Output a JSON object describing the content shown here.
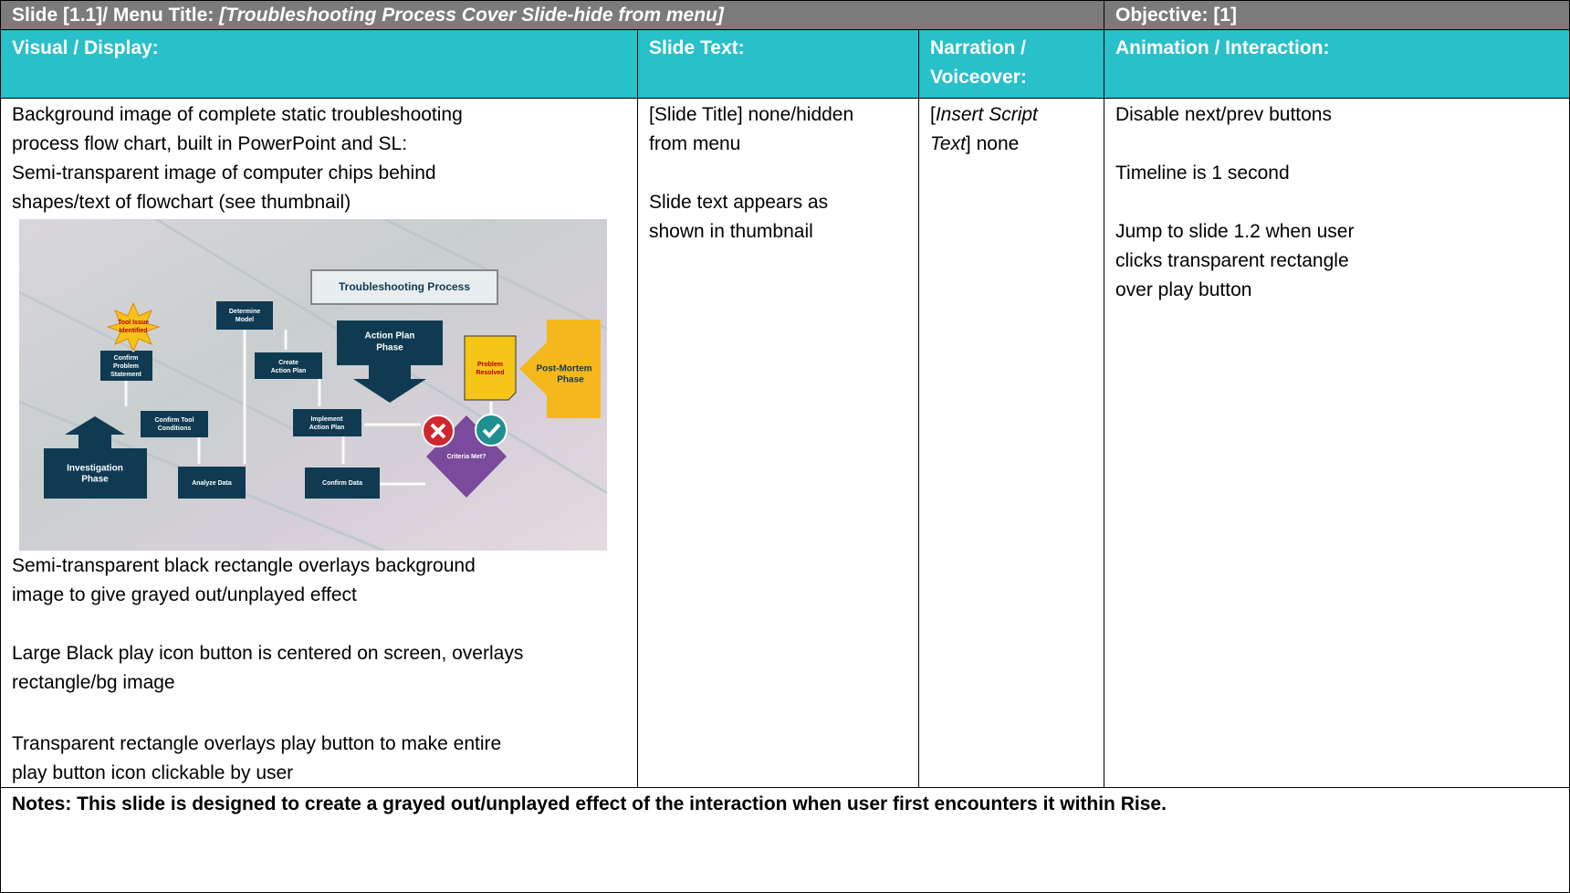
{
  "header": {
    "title_label": "Slide [1.1]/ Menu Title:",
    "title_value": "[Troubleshooting Process Cover Slide-hide from menu]",
    "objective": "Objective: [1]"
  },
  "columns": [
    "Visual / Display:",
    "Slide Text:",
    "Narration / Voiceover:",
    "Animation / Interaction:"
  ],
  "visual": {
    "intro": [
      "Background image of complete static troubleshooting",
      "process flow chart, built in PowerPoint and SL:",
      "Semi-transparent image of computer chips behind",
      "shapes/text of flowchart (see thumbnail)"
    ],
    "thumbnail": {
      "title": "Troubleshooting Process",
      "tool_issue": [
        "Tool Issue",
        "Identified"
      ],
      "determine_model": [
        "Determine",
        "Model"
      ],
      "confirm_problem": [
        "Confirm",
        "Problem",
        "Statement"
      ],
      "create_plan": [
        "Create",
        "Action Plan"
      ],
      "action_phase": [
        "Action Plan",
        "Phase"
      ],
      "problem_resolved": [
        "Problem",
        "Resolved"
      ],
      "post_mortem": [
        "Post-Mortem",
        "Phase"
      ],
      "confirm_tool": [
        "Confirm Tool",
        "Conditions"
      ],
      "implement_plan": [
        "Implement",
        "Action Plan"
      ],
      "investigation": [
        "Investigation",
        "Phase"
      ],
      "analyze": "Analyze Data",
      "confirm_data": "Confirm Data",
      "criteria": "Criteria Met?"
    },
    "paragraphs": [
      [
        "Semi-transparent black rectangle overlays background",
        "image to give grayed out/unplayed effect"
      ],
      [
        "Large Black play icon button is centered on screen, overlays",
        "rectangle/bg image"
      ],
      [
        "Transparent rectangle overlays play button to make entire",
        "play button icon clickable by user"
      ]
    ]
  },
  "slide_text": [
    [
      "[Slide Title] none/hidden",
      "from menu"
    ],
    [
      "Slide text appears as",
      "shown in thumbnail"
    ]
  ],
  "narration": {
    "prefix": "[",
    "italic_a": "Insert Script",
    "italic_b": "Text",
    "suffix": "] none"
  },
  "animation": [
    [
      "Disable next/prev buttons"
    ],
    [
      "Timeline is 1 second"
    ],
    [
      "Jump to slide 1.2 when user",
      "clicks transparent rectangle",
      "over play button"
    ]
  ],
  "notes": "Notes: This slide is designed to create a grayed out/unplayed effect of the interaction when user first encounters it within Rise."
}
